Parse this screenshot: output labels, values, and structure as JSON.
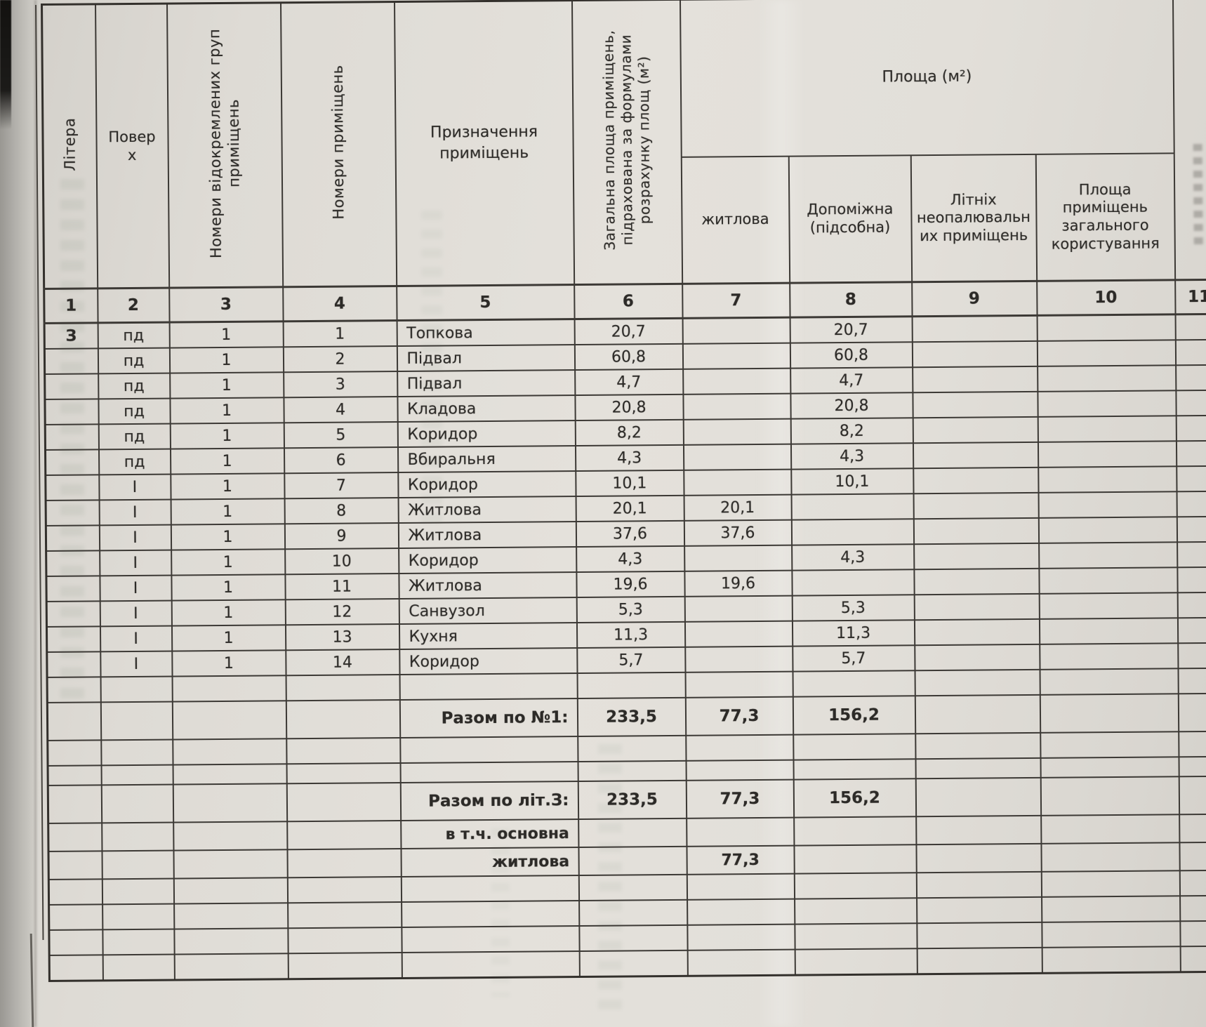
{
  "page": {
    "colors": {
      "paper": "#e2dfd9",
      "line": "#3c3935",
      "text": "#2c2a27"
    },
    "table": {
      "span_header": "Площа (м²)",
      "columns": {
        "c1": "Літера",
        "c2": "Поверх",
        "c3": "Номери відокремлених груп приміщень",
        "c4": "Номери приміщень",
        "c5": "Призначення приміщень",
        "c6": "Загальна площа приміщень, підрахована за формулами розрахунку площ (м²)",
        "c7": "житлова",
        "c8": "Допоміжна (підсобна)",
        "c9": "Літніх неопалювальних приміщень",
        "c10": "Площа приміщень загального користування"
      },
      "column_numbers": [
        "1",
        "2",
        "3",
        "4",
        "5",
        "6",
        "7",
        "8",
        "9",
        "10",
        "11"
      ],
      "rows": [
        {
          "lit": "З",
          "fl": "пд",
          "grp": "1",
          "no": "1",
          "purpose": "Топкова",
          "total": "20,7",
          "living": "",
          "aux": "20,7",
          "summer": "",
          "common": ""
        },
        {
          "lit": "",
          "fl": "пд",
          "grp": "1",
          "no": "2",
          "purpose": "Підвал",
          "total": "60,8",
          "living": "",
          "aux": "60,8",
          "summer": "",
          "common": ""
        },
        {
          "lit": "",
          "fl": "пд",
          "grp": "1",
          "no": "3",
          "purpose": "Підвал",
          "total": "4,7",
          "living": "",
          "aux": "4,7",
          "summer": "",
          "common": ""
        },
        {
          "lit": "",
          "fl": "пд",
          "grp": "1",
          "no": "4",
          "purpose": "Кладова",
          "total": "20,8",
          "living": "",
          "aux": "20,8",
          "summer": "",
          "common": ""
        },
        {
          "lit": "",
          "fl": "пд",
          "grp": "1",
          "no": "5",
          "purpose": "Коридор",
          "total": "8,2",
          "living": "",
          "aux": "8,2",
          "summer": "",
          "common": ""
        },
        {
          "lit": "",
          "fl": "пд",
          "grp": "1",
          "no": "6",
          "purpose": "Вбиральня",
          "total": "4,3",
          "living": "",
          "aux": "4,3",
          "summer": "",
          "common": ""
        },
        {
          "lit": "",
          "fl": "І",
          "grp": "1",
          "no": "7",
          "purpose": "Коридор",
          "total": "10,1",
          "living": "",
          "aux": "10,1",
          "summer": "",
          "common": ""
        },
        {
          "lit": "",
          "fl": "І",
          "grp": "1",
          "no": "8",
          "purpose": "Житлова",
          "total": "20,1",
          "living": "20,1",
          "aux": "",
          "summer": "",
          "common": ""
        },
        {
          "lit": "",
          "fl": "І",
          "grp": "1",
          "no": "9",
          "purpose": "Житлова",
          "total": "37,6",
          "living": "37,6",
          "aux": "",
          "summer": "",
          "common": ""
        },
        {
          "lit": "",
          "fl": "І",
          "grp": "1",
          "no": "10",
          "purpose": "Коридор",
          "total": "4,3",
          "living": "",
          "aux": "4,3",
          "summer": "",
          "common": ""
        },
        {
          "lit": "",
          "fl": "І",
          "grp": "1",
          "no": "11",
          "purpose": "Житлова",
          "total": "19,6",
          "living": "19,6",
          "aux": "",
          "summer": "",
          "common": ""
        },
        {
          "lit": "",
          "fl": "І",
          "grp": "1",
          "no": "12",
          "purpose": "Санвузол",
          "total": "5,3",
          "living": "",
          "aux": "5,3",
          "summer": "",
          "common": ""
        },
        {
          "lit": "",
          "fl": "І",
          "grp": "1",
          "no": "13",
          "purpose": "Кухня",
          "total": "11,3",
          "living": "",
          "aux": "11,3",
          "summer": "",
          "common": ""
        },
        {
          "lit": "",
          "fl": "І",
          "grp": "1",
          "no": "14",
          "purpose": "Коридор",
          "total": "5,7",
          "living": "",
          "aux": "5,7",
          "summer": "",
          "common": ""
        }
      ],
      "totals": {
        "t1_label": "Разом по №1:",
        "t1_total": "233,5",
        "t1_living": "77,3",
        "t1_aux": "156,2",
        "t2_label": "Разом по літ.З:",
        "t2_total": "233,5",
        "t2_living": "77,3",
        "t2_aux": "156,2",
        "t3_label": "в т.ч. основна",
        "t4_label": "житлова",
        "t4_living": "77,3"
      }
    }
  }
}
